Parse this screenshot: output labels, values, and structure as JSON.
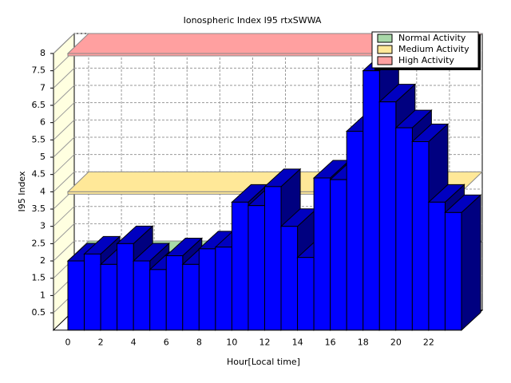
{
  "chart_data": {
    "type": "bar3d",
    "title": "Ionospheric Index I95 rtxSWWA",
    "x_label": "Hour[Local time]",
    "y_label": "I95 Index",
    "categories": [
      "0",
      null,
      "2",
      null,
      "4",
      null,
      "6",
      null,
      "8",
      null,
      "10",
      null,
      "12",
      null,
      "14",
      null,
      "16",
      null,
      "18",
      null,
      "20",
      null,
      "22",
      null
    ],
    "values": [
      2.0,
      2.2,
      1.9,
      2.5,
      2.0,
      1.75,
      2.15,
      1.9,
      2.35,
      2.4,
      3.7,
      3.6,
      4.15,
      3.0,
      2.1,
      4.4,
      4.35,
      5.75,
      7.5,
      6.6,
      5.85,
      5.45,
      3.7,
      3.4
    ],
    "color": "#0000ff",
    "ylim": [
      0,
      8
    ],
    "yticks": [
      0.5,
      1,
      1.5,
      2,
      2.5,
      3,
      3.5,
      4,
      4.5,
      5,
      5.5,
      6,
      6.5,
      7,
      7.5,
      8
    ],
    "grid": true,
    "bands": [
      {
        "name": "Normal Activity",
        "color": "#a8d8a8",
        "value": 2
      },
      {
        "name": "Medium Activity",
        "color": "#ffe898",
        "value": 4
      },
      {
        "name": "High Activity",
        "color": "#ffa0a0",
        "value": 8
      }
    ],
    "legend": "top-right"
  }
}
